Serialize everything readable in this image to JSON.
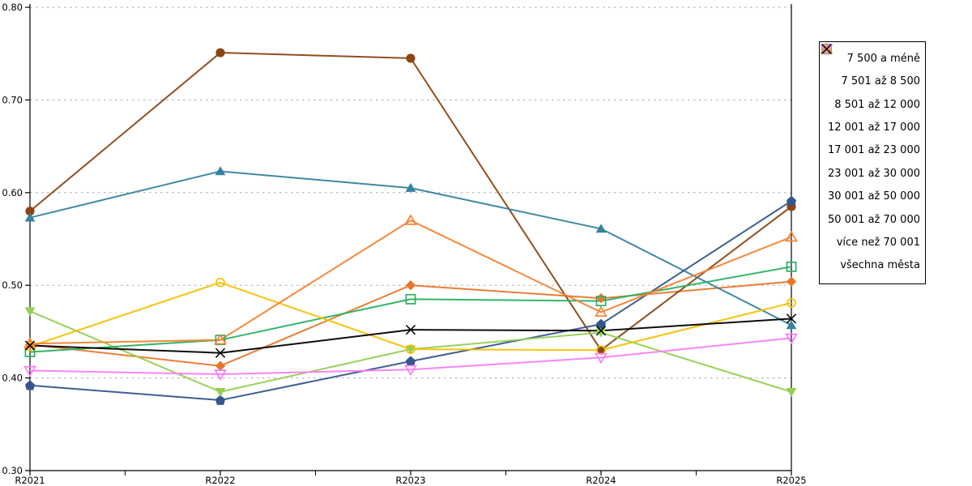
{
  "page": {
    "background": "#ffffff"
  },
  "chart_data": {
    "type": "line",
    "title": "",
    "xlabel": "",
    "ylabel": "",
    "x_categories": [
      "R2021",
      "R2022",
      "R2023",
      "R2024",
      "R2025"
    ],
    "ylim": [
      0.3,
      0.8
    ],
    "ytick_labels": [
      "0.30",
      "0.40",
      "0.50",
      "0.60",
      "0.70",
      "0.80"
    ],
    "grid": {
      "horizontal": true,
      "style": "dotted",
      "color": "#a8a8a8"
    },
    "legend_position": "right-outside",
    "series": [
      {
        "name": "7 500 a méně",
        "marker": "diamond",
        "marker_fill": "filled",
        "color": "#E8772B",
        "values": [
          0.436,
          0.413,
          0.5,
          0.486,
          0.504
        ]
      },
      {
        "name": "7 501 až 8 500",
        "marker": "circle",
        "marker_fill": "filled",
        "color": "#8B4513",
        "values": [
          0.58,
          0.751,
          0.745,
          0.43,
          0.585
        ]
      },
      {
        "name": "8 501 až 12 000",
        "marker": "triangle-up",
        "marker_fill": "filled",
        "color": "#35839E",
        "values": [
          0.573,
          0.623,
          0.605,
          0.561,
          0.457
        ]
      },
      {
        "name": "12 001 až 17 000",
        "marker": "pentagon",
        "marker_fill": "filled",
        "color": "#33568C",
        "values": [
          0.392,
          0.376,
          0.418,
          0.458,
          0.591
        ]
      },
      {
        "name": "17 001 až 23 000",
        "marker": "triangle-down",
        "marker_fill": "filled",
        "color": "#92D050",
        "values": [
          0.472,
          0.385,
          0.431,
          0.449,
          0.385
        ]
      },
      {
        "name": "23 001 až 30 000",
        "marker": "square",
        "marker_fill": "open",
        "color": "#29B061",
        "values": [
          0.428,
          0.441,
          0.485,
          0.483,
          0.52
        ]
      },
      {
        "name": "30 001 až 50 000",
        "marker": "circle",
        "marker_fill": "open",
        "color": "#F5C000",
        "values": [
          0.434,
          0.503,
          0.431,
          0.43,
          0.481
        ]
      },
      {
        "name": "50 001 až 70 000",
        "marker": "triangle-up",
        "marker_fill": "open",
        "color": "#F5822F",
        "values": [
          0.437,
          0.441,
          0.57,
          0.471,
          0.552
        ]
      },
      {
        "name": "více než 70 001",
        "marker": "triangle-down",
        "marker_fill": "open",
        "color": "#FA7DF5",
        "values": [
          0.408,
          0.404,
          0.409,
          0.422,
          0.443
        ]
      },
      {
        "name": "všechna města",
        "marker": "x",
        "marker_fill": "line",
        "color": "#000000",
        "values": [
          0.435,
          0.427,
          0.452,
          0.451,
          0.464
        ]
      }
    ]
  }
}
